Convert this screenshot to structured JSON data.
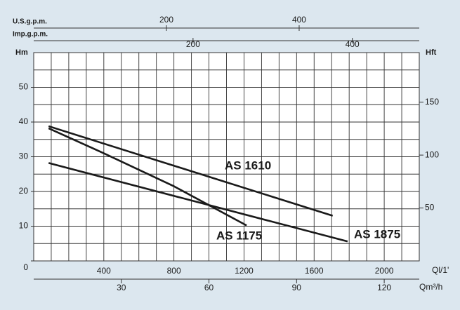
{
  "chart_data": {
    "type": "line",
    "ylabel": "Hm",
    "ylim": [
      0,
      60
    ],
    "yticks": [
      0,
      10,
      20,
      30,
      40,
      50
    ],
    "y2label": "Hft",
    "y2lim": [
      0,
      196.85
    ],
    "y2ticks": [
      50,
      100,
      150
    ],
    "xlabel": "Ql/1'",
    "xlim": [
      0,
      2200
    ],
    "xticks": [
      400,
      800,
      1200,
      1600,
      2000
    ],
    "xgrid_step": 100,
    "ygrid_step": 5,
    "bottom_axis": {
      "label": "Qm³/h",
      "lim": [
        0,
        132
      ],
      "ticks": [
        30,
        60,
        90,
        120
      ]
    },
    "top_axes": [
      {
        "label": "U.S.g.p.m.",
        "lim": [
          0,
          581
        ],
        "ticks": [
          200,
          400
        ]
      },
      {
        "label": "Imp.g.p.m.",
        "lim": [
          0,
          484
        ],
        "ticks": [
          200,
          400
        ]
      }
    ],
    "series": [
      {
        "name": "AS 1610",
        "color": "#1a1a1a",
        "x": [
          85,
          1706
        ],
        "values": [
          38.8,
          13
        ]
      },
      {
        "name": "AS 1175",
        "color": "#1a1a1a",
        "x": [
          85,
          400,
          800,
          1215
        ],
        "values": [
          38.2,
          31,
          21.5,
          10.2
        ]
      },
      {
        "name": "AS 1875",
        "color": "#1a1a1a",
        "x": [
          85,
          1791
        ],
        "values": [
          28.2,
          5.6
        ]
      }
    ]
  }
}
